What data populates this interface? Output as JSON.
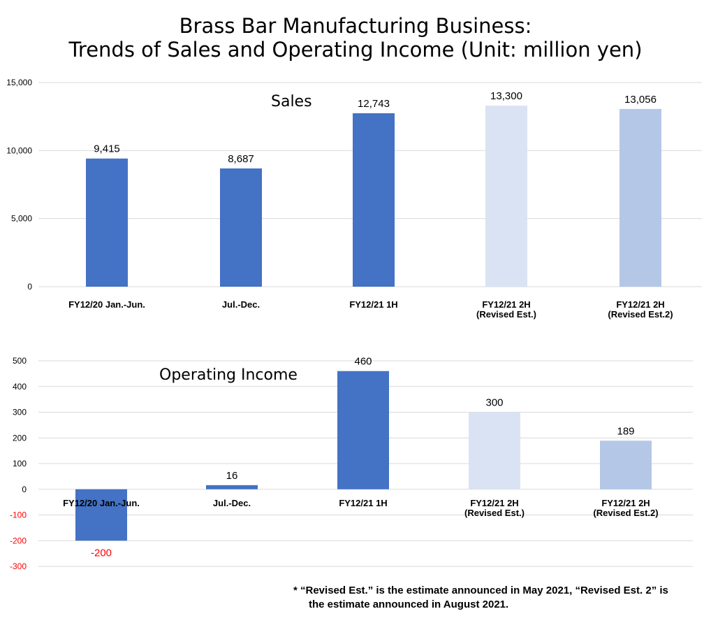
{
  "title_line1": "Brass Bar Manufacturing Business:",
  "title_line2": "Trends of Sales and Operating Income (Unit: million yen)",
  "footnote_line1": "* “Revised Est.” is the estimate announced in May 2021, “Revised Est. 2” is",
  "footnote_line2": "the estimate announced in August 2021.",
  "colors": {
    "actual": "#4472C4",
    "revised_est": "#DAE3F3",
    "revised_est2": "#B4C7E7",
    "negative_label": "#FF0000",
    "grid": "#D9D9D9"
  },
  "chart_data": [
    {
      "type": "bar",
      "title": "Sales",
      "categories": [
        [
          "FY12/20 Jan.-Jun."
        ],
        [
          "Jul.-Dec."
        ],
        [
          "FY12/21 1H"
        ],
        [
          "FY12/21 2H",
          "(Revised Est.)"
        ],
        [
          "FY12/21 2H",
          "(Revised Est.2)"
        ]
      ],
      "values": [
        9415,
        8687,
        12743,
        13300,
        13056
      ],
      "data_labels": [
        "9,415",
        "8,687",
        "12,743",
        "13,300",
        "13,056"
      ],
      "bar_colors": [
        "actual",
        "actual",
        "actual",
        "revised_est",
        "revised_est2"
      ],
      "yticks": [
        0,
        5000,
        10000,
        15000
      ],
      "ytick_labels": [
        "0",
        "5,000",
        "10,000",
        "15,000"
      ],
      "ylim": [
        0,
        15000
      ],
      "grid": true
    },
    {
      "type": "bar",
      "title": "Operating Income",
      "categories": [
        [
          "FY12/20 Jan.-Jun."
        ],
        [
          "Jul.-Dec."
        ],
        [
          "FY12/21 1H"
        ],
        [
          "FY12/21 2H",
          "(Revised Est.)"
        ],
        [
          "FY12/21 2H",
          "(Revised Est.2)"
        ]
      ],
      "values": [
        -200,
        16,
        460,
        300,
        189
      ],
      "data_labels": [
        "-200",
        "16",
        "460",
        "300",
        "189"
      ],
      "bar_colors": [
        "actual",
        "actual",
        "actual",
        "revised_est",
        "revised_est2"
      ],
      "yticks": [
        -300,
        -200,
        -100,
        0,
        100,
        200,
        300,
        400,
        500
      ],
      "ytick_labels": [
        "-300",
        "-200",
        "-100",
        "0",
        "100",
        "200",
        "300",
        "400",
        "500"
      ],
      "ylim": [
        -300,
        500
      ],
      "grid": true
    }
  ]
}
